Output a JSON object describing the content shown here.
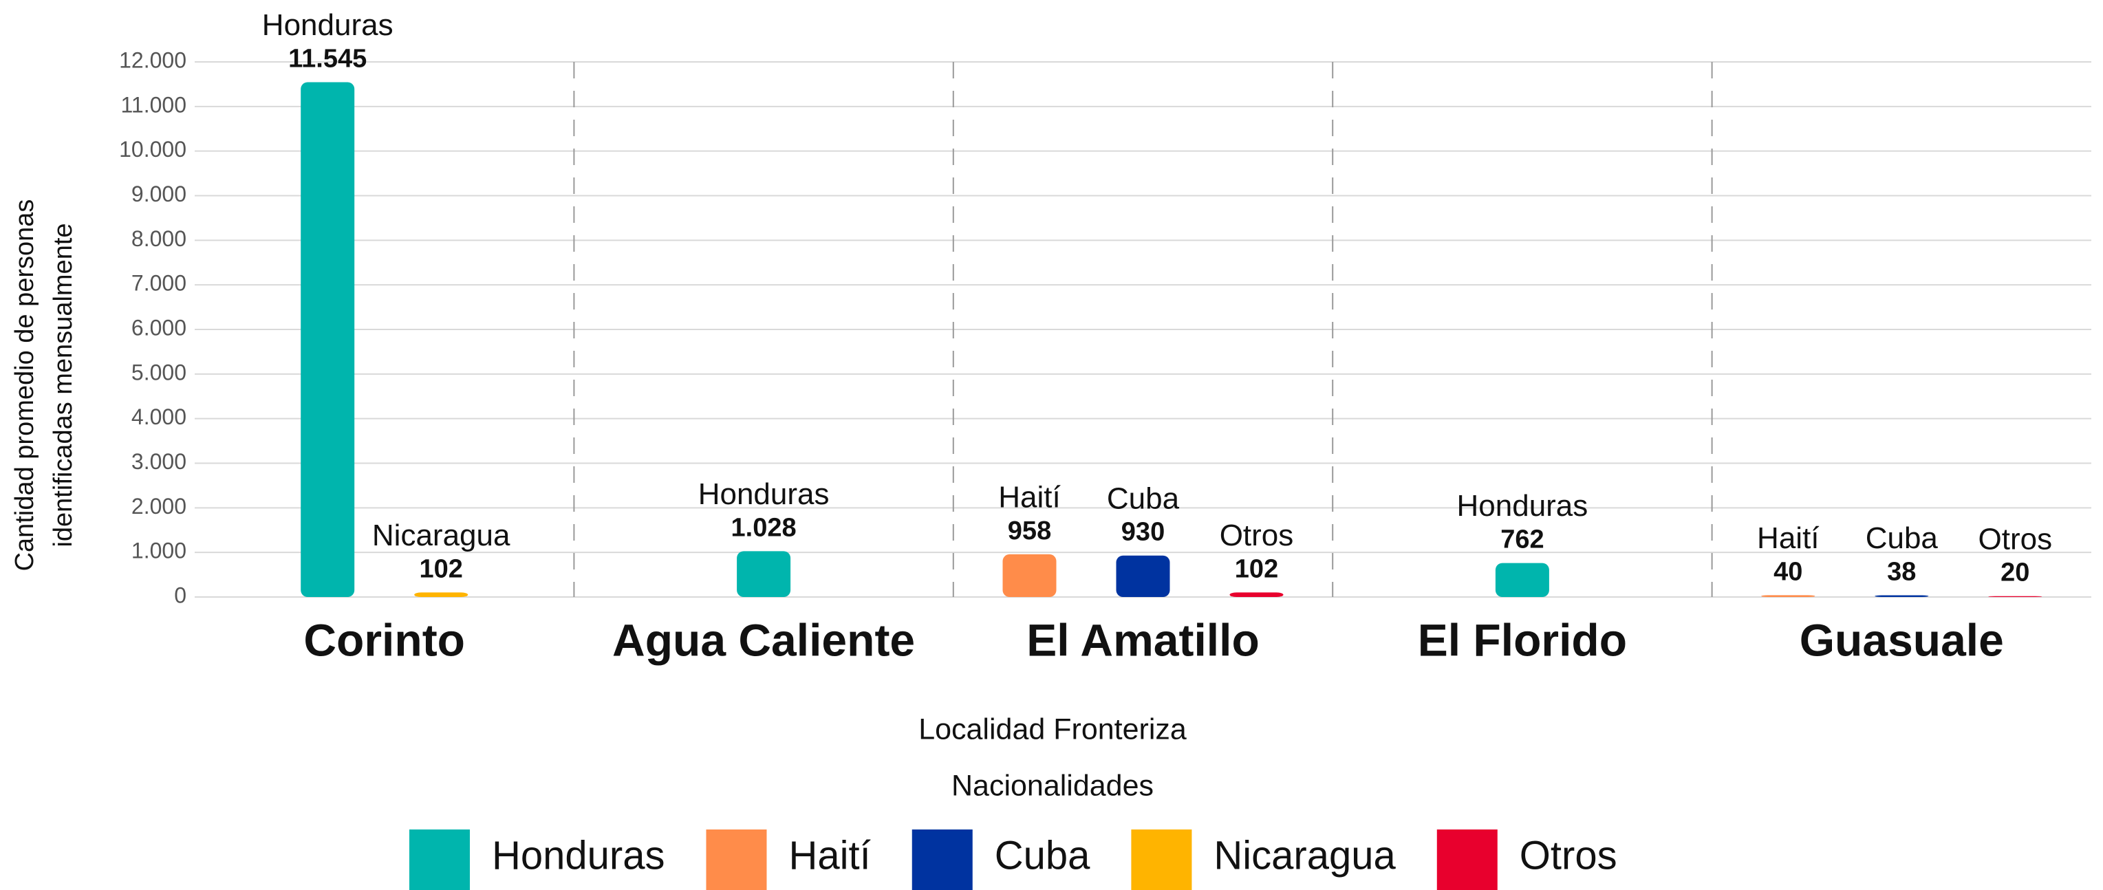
{
  "chart_data": {
    "type": "bar",
    "categories": [
      "Corinto",
      "Agua Caliente",
      "El Amatillo",
      "El Florido",
      "Guasuale"
    ],
    "series": [
      {
        "name": "Honduras",
        "color": "#00b5ad",
        "values": [
          11545,
          1028,
          null,
          762,
          null
        ],
        "value_labels": [
          "11.545",
          "1.028",
          null,
          "762",
          null
        ]
      },
      {
        "name": "Haití",
        "color": "#ff8c4a",
        "values": [
          null,
          null,
          958,
          null,
          40
        ],
        "value_labels": [
          null,
          null,
          "958",
          null,
          "40"
        ]
      },
      {
        "name": "Cuba",
        "color": "#0033a0",
        "values": [
          null,
          null,
          930,
          null,
          38
        ],
        "value_labels": [
          null,
          null,
          "930",
          null,
          "38"
        ]
      },
      {
        "name": "Nicaragua",
        "color": "#ffb400",
        "values": [
          102,
          null,
          null,
          null,
          null
        ],
        "value_labels": [
          "102",
          null,
          null,
          null,
          null
        ]
      },
      {
        "name": "Otros",
        "color": "#e8002d",
        "values": [
          null,
          null,
          102,
          null,
          20
        ],
        "value_labels": [
          null,
          null,
          "102",
          null,
          "20"
        ]
      }
    ],
    "x_label": "Localidad Fronteriza",
    "y_label": [
      "Cantidad promedio de personas",
      "identificadas mensualmente"
    ],
    "legend_title": "Nacionalidades",
    "ylim": [
      0,
      12000
    ],
    "yticks": [
      0,
      {
        "value": 1000,
        "label": "1.000"
      },
      {
        "value": 2000,
        "label": "2.000"
      },
      {
        "value": 3000,
        "label": "3.000"
      },
      {
        "value": 4000,
        "label": "4.000"
      },
      {
        "value": 5000,
        "label": "5.000"
      },
      {
        "value": 6000,
        "label": "6.000"
      },
      {
        "value": 7000,
        "label": "7.000"
      },
      {
        "value": 8000,
        "label": "8.000"
      },
      {
        "value": 9000,
        "label": "9.000"
      },
      {
        "value": 10000,
        "label": "10.000"
      },
      {
        "value": 11000,
        "label": "11.000"
      },
      {
        "value": 12000,
        "label": "12.000"
      }
    ],
    "grid": true,
    "legend": "bottom"
  }
}
